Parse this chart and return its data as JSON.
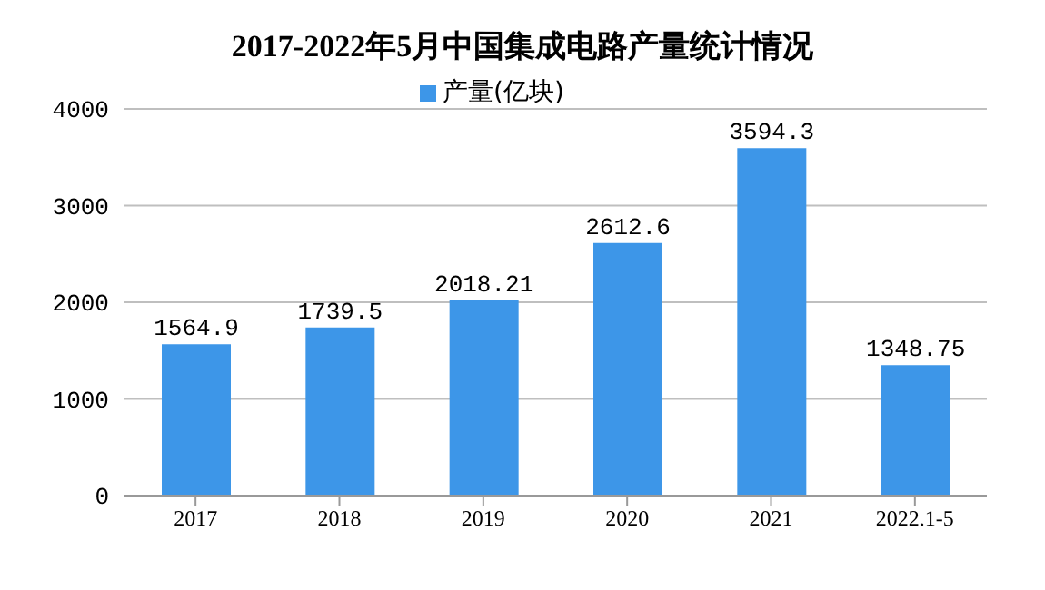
{
  "chart_data": {
    "type": "bar",
    "title": "2017-2022年5月中国集成电路产量统计情况",
    "categories": [
      "2017",
      "2018",
      "2019",
      "2020",
      "2021",
      "2022.1-5"
    ],
    "series": [
      {
        "name": "产量(亿块)",
        "color": "#3d96e8",
        "values": [
          1564.9,
          1739.5,
          2018.21,
          2612.6,
          3594.3,
          1348.75
        ]
      }
    ],
    "ylim": [
      0,
      4000
    ],
    "yticks": [
      0,
      1000,
      2000,
      3000,
      4000
    ],
    "grid": "y",
    "legend": "top",
    "data_labels": true
  }
}
